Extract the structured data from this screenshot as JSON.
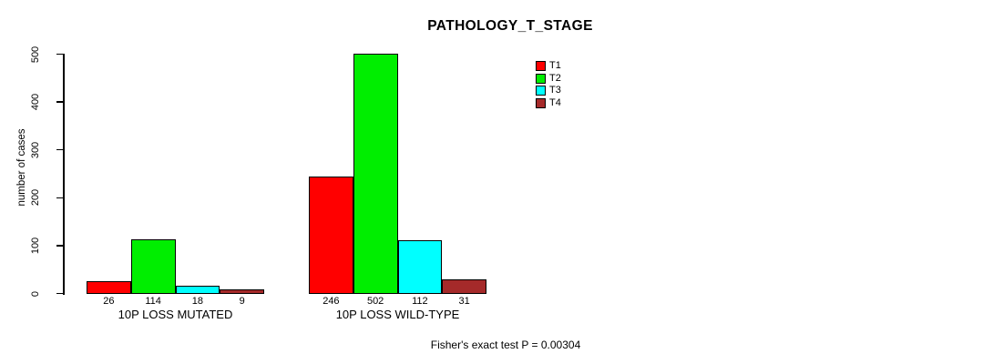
{
  "title": "PATHOLOGY_T_STAGE",
  "y_axis_label": "number of cases",
  "footnote": "Fisher's exact test P = 0.00304",
  "chart_data": {
    "type": "bar",
    "title": "PATHOLOGY_T_STAGE",
    "xlabel": "",
    "ylabel": "number of cases",
    "ylim": [
      0,
      500
    ],
    "yticks": [
      0,
      100,
      200,
      300,
      400,
      500
    ],
    "grid": false,
    "legend_position": "top-right",
    "bar_value_labels_shown": true,
    "categories": [
      "10P LOSS MUTATED",
      "10P LOSS WILD-TYPE"
    ],
    "series": [
      {
        "name": "T1",
        "color": "#FF0000",
        "values": [
          26,
          246
        ]
      },
      {
        "name": "T2",
        "color": "#00EE00",
        "values": [
          114,
          502
        ]
      },
      {
        "name": "T3",
        "color": "#00FFFF",
        "values": [
          18,
          112
        ]
      },
      {
        "name": "T4",
        "color": "#A52A2A",
        "values": [
          9,
          31
        ]
      }
    ],
    "annotation": "Fisher's exact test P = 0.00304"
  }
}
